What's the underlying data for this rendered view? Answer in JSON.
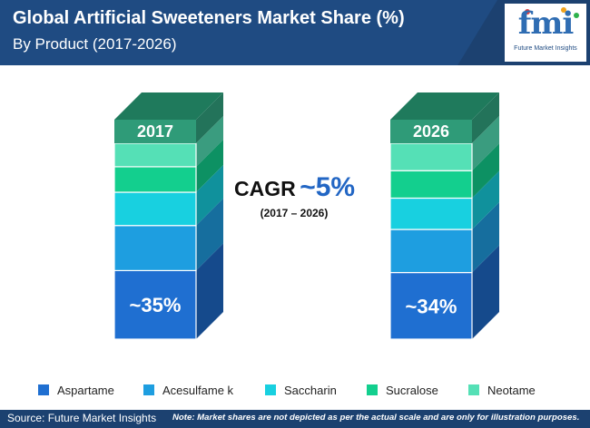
{
  "header": {
    "title": "Global Artificial Sweeteners Market Share (%)",
    "subtitle": "By Product (2017-2026)"
  },
  "logo": {
    "mark": "fmi",
    "name": "Future Market Insights"
  },
  "cagr": {
    "label": "CAGR",
    "value": "~5%",
    "period": "(2017 – 2026)"
  },
  "chart_data": {
    "type": "bar",
    "stacked": true,
    "categories": [
      "2017",
      "2026"
    ],
    "value_labels": [
      "~35%",
      "~34%"
    ],
    "series": [
      {
        "name": "Aspartame",
        "values": [
          35,
          34
        ],
        "color": "#1f6fd1",
        "side": "#154a8c"
      },
      {
        "name": "Acesulfame k",
        "values": [
          23,
          22
        ],
        "color": "#1e9ee0",
        "side": "#166e9e"
      },
      {
        "name": "Saccharin",
        "values": [
          17,
          16
        ],
        "color": "#18d0e0",
        "side": "#10919c"
      },
      {
        "name": "Sucralose",
        "values": [
          13,
          14
        ],
        "color": "#13cf8e",
        "side": "#0d9163"
      },
      {
        "name": "Neotame",
        "values": [
          12,
          14
        ],
        "color": "#55e0b6",
        "side": "#3a9c7f"
      }
    ],
    "legend_position": "bottom",
    "grid": false
  },
  "colors": {
    "header": "#1f4b82",
    "footer": "#1c4170",
    "cagr_value": "#2266c4"
  },
  "footer": {
    "source": "Source: Future Market Insights",
    "note": "Note: Market shares are not depicted as per the actual scale and are only for illustration purposes."
  }
}
